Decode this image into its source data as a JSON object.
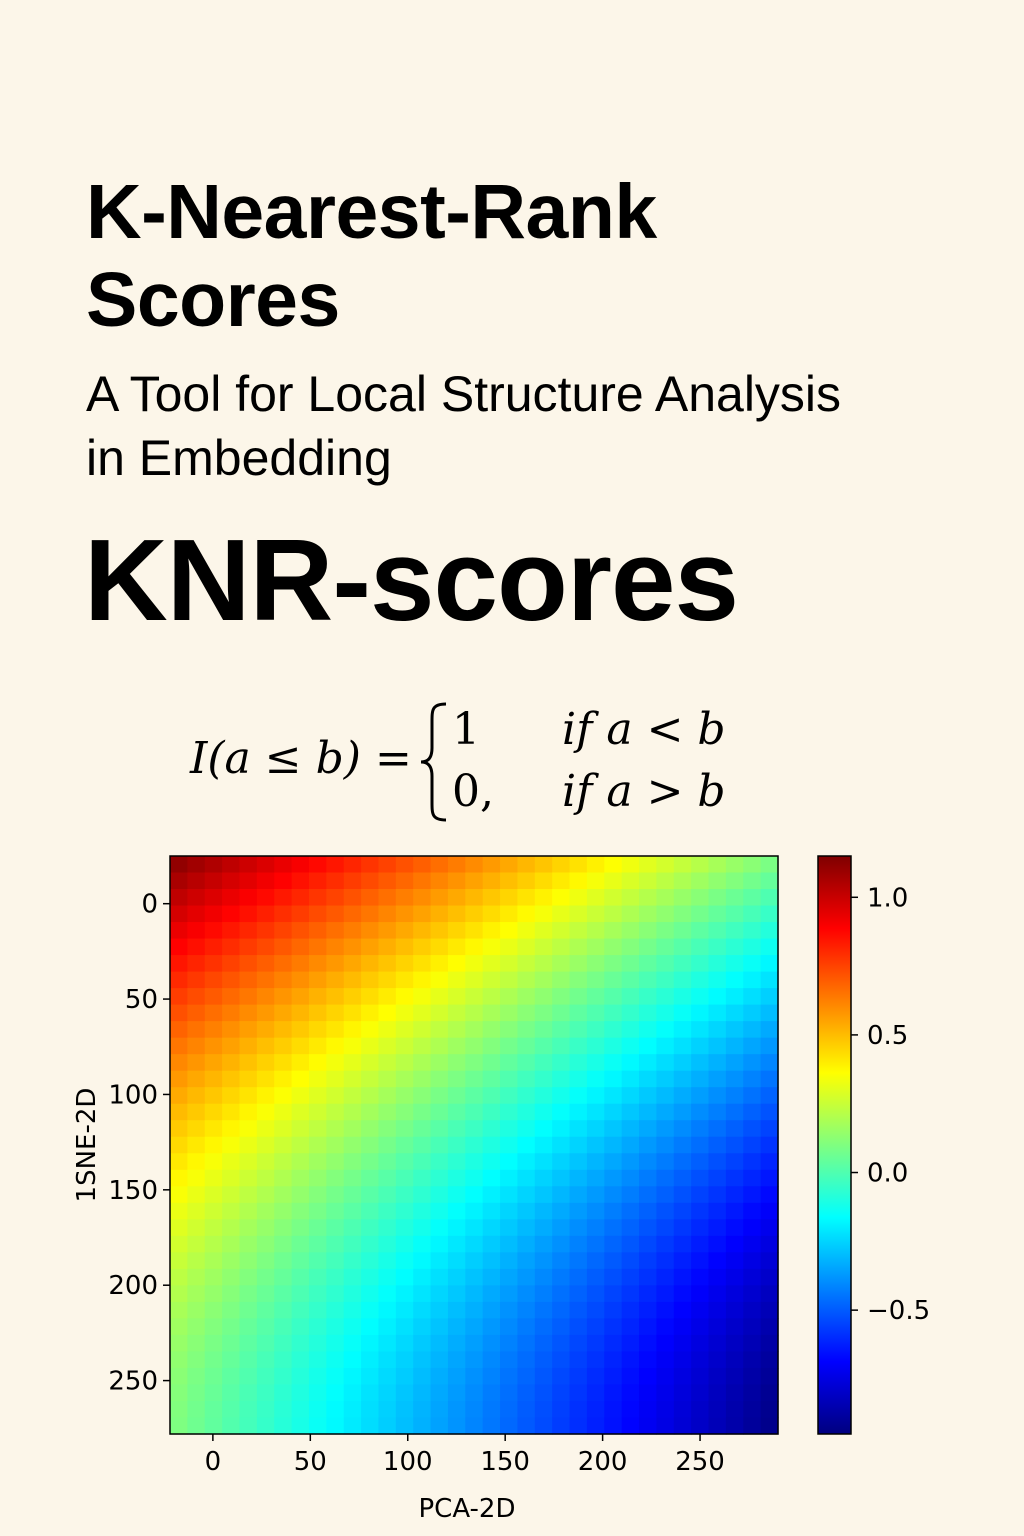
{
  "header": {
    "title": "K-Nearest-Rank Scores",
    "subtitle": "A Tool for Local Structure Analysis in Embedding",
    "acronym": "KNR-scores"
  },
  "formula": {
    "lhs": "I(a ≤ b) =",
    "brace": "{",
    "case1_value": "1",
    "case1_condition": "if a < b",
    "case2_value": "0,",
    "case2_condition": "if a > b"
  },
  "chart_data": {
    "type": "heatmap",
    "title": "",
    "xlabel": "PCA-2D",
    "ylabel": "1SNE-2D",
    "x_ticks": [
      0,
      50,
      100,
      150,
      200,
      250
    ],
    "x_tick_labels": [
      "0",
      "50",
      "100",
      "150",
      "200",
      "250"
    ],
    "y_ticks": [
      0,
      50,
      100,
      150,
      200,
      250
    ],
    "y_tick_labels": [
      "0",
      "50",
      "100",
      "150",
      "200",
      "250"
    ],
    "xlim": [
      -22,
      290
    ],
    "ylim": [
      -25,
      278
    ],
    "y_inverted": true,
    "grid_size": [
      35,
      35
    ],
    "value_model": "≈ 1.15 at top-left (0,0) decreasing smoothly to ≈ -0.95 at bottom-right; ≈ 0.2 along the curved band from top-right to bottom-left",
    "value_range": [
      -0.95,
      1.15
    ],
    "colormap": "jet",
    "colorbar": {
      "ticks": [
        1.0,
        0.5,
        0.0,
        -0.5
      ],
      "tick_labels": [
        "1.0",
        "0.5",
        "0.0",
        "−0.5"
      ],
      "range": [
        -0.95,
        1.15
      ]
    },
    "grid": false
  }
}
